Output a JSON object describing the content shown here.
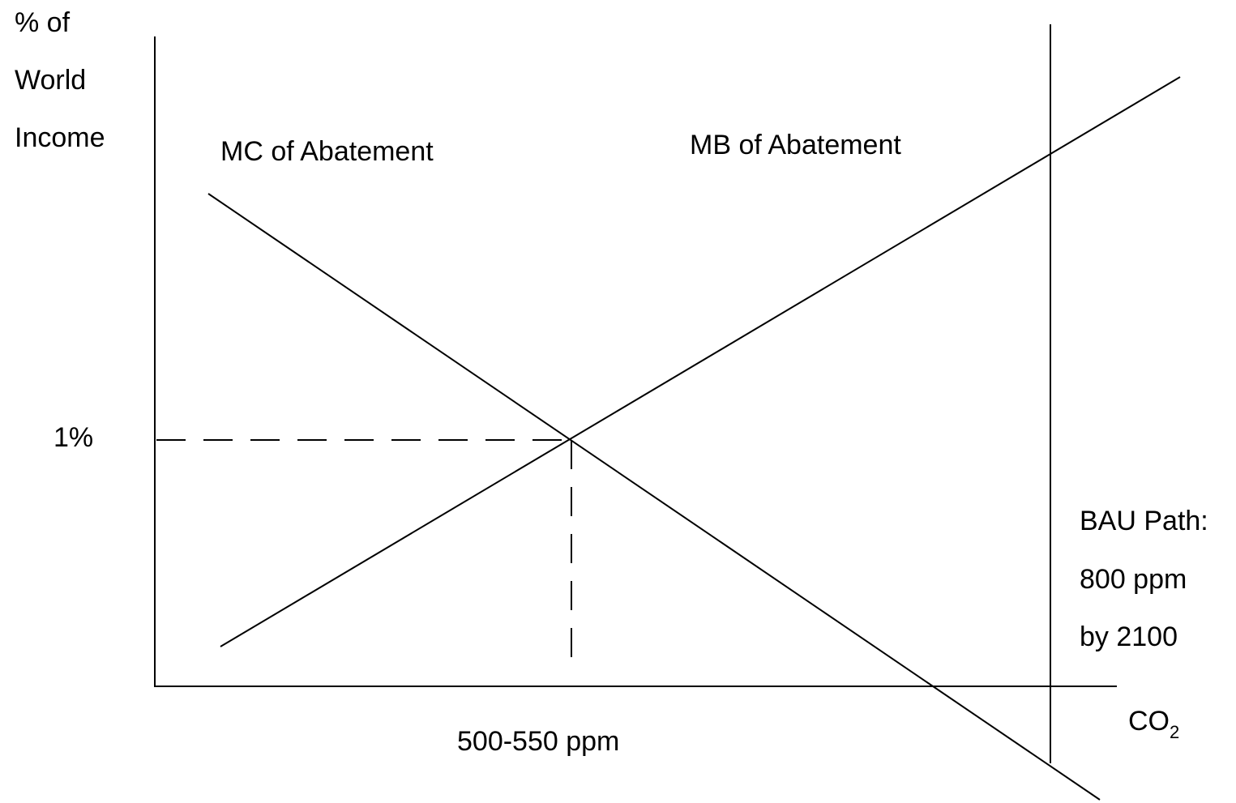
{
  "y_axis_label": [
    "% of",
    "World",
    "Income"
  ],
  "x_axis_label": {
    "text": "CO",
    "subscript": "2"
  },
  "curves": {
    "mc": "MC of Abatement",
    "mb": "MB of Abatement"
  },
  "equilibrium": {
    "y_label": "1%",
    "x_label": "500-550 ppm"
  },
  "bau": [
    "BAU Path:",
    "800 ppm",
    "by 2100"
  ]
}
